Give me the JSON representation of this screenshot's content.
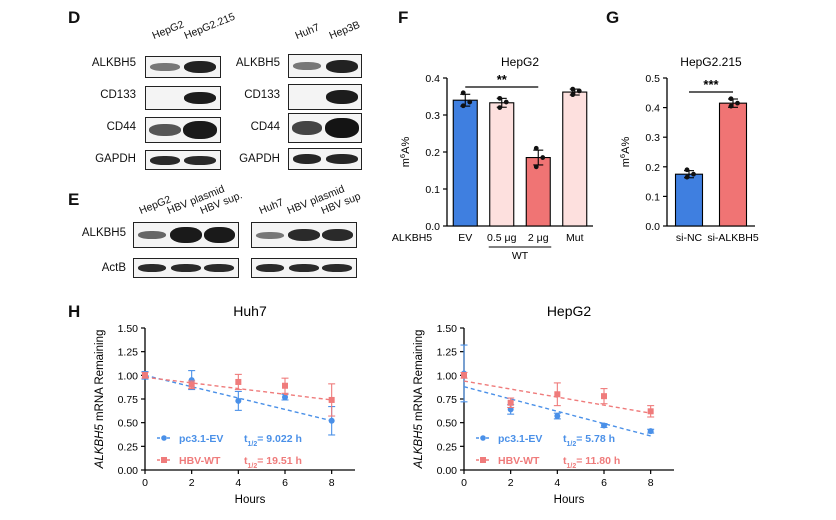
{
  "panels": {
    "D": "D",
    "E": "E",
    "F": "F",
    "G": "G",
    "H": "H"
  },
  "blot_D": {
    "left": {
      "lanes": [
        "HepG2",
        "HepG2.215"
      ],
      "rows": [
        "ALKBH5",
        "CD133",
        "CD44",
        "GAPDH"
      ]
    },
    "right": {
      "lanes": [
        "Huh7",
        "Hep3B"
      ],
      "rows": [
        "ALKBH5",
        "CD133",
        "CD44",
        "GAPDH"
      ]
    }
  },
  "blot_E": {
    "left": {
      "lanes": [
        "HepG2",
        "HBV plasmid",
        "HBV sup."
      ]
    },
    "right": {
      "lanes": [
        "Huh7",
        "HBV plasmid",
        "HBV sup"
      ]
    },
    "rows": [
      "ALKBH5",
      "ActB"
    ]
  },
  "chart_data": [
    {
      "id": "F",
      "type": "bar",
      "title": "HepG2",
      "ylabel": "m6A%",
      "ylim": [
        0,
        0.4
      ],
      "yticks": [
        "0.0",
        "0.1",
        "0.2",
        "0.3",
        "0.4"
      ],
      "row_label": "ALKBH5",
      "categories": [
        "EV",
        "0.5 μg",
        "2 μg",
        "Mut"
      ],
      "group_label": "WT",
      "values": [
        0.34,
        0.333,
        0.185,
        0.362
      ],
      "errors": [
        0.016,
        0.012,
        0.02,
        0.008
      ],
      "points": [
        [
          0.36,
          0.335,
          0.325
        ],
        [
          0.345,
          0.335,
          0.32
        ],
        [
          0.21,
          0.185,
          0.16
        ],
        [
          0.37,
          0.365,
          0.355
        ]
      ],
      "colors": [
        "#3f7fe0",
        "#fde0de",
        "#f07474",
        "#fde0de"
      ],
      "significance": "**"
    },
    {
      "id": "G",
      "type": "bar",
      "title": "HepG2.215",
      "ylabel": "m6A%",
      "ylim": [
        0,
        0.5
      ],
      "yticks": [
        "0.0",
        "0.1",
        "0.2",
        "0.3",
        "0.4",
        "0.5"
      ],
      "categories": [
        "si-NC",
        "si-ALKBH5"
      ],
      "values": [
        0.175,
        0.415
      ],
      "errors": [
        0.012,
        0.014
      ],
      "points": [
        [
          0.19,
          0.175,
          0.165
        ],
        [
          0.43,
          0.415,
          0.405
        ]
      ],
      "colors": [
        "#3f7fe0",
        "#f07474"
      ],
      "significance": "***"
    },
    {
      "id": "H1",
      "type": "line",
      "title": "Huh7",
      "xlabel": "Hours",
      "ylabel_italic": "ALKBH5",
      "ylabel_rest": " mRNA Remaining",
      "xlim": [
        0,
        9
      ],
      "ylim": [
        0,
        1.5
      ],
      "xticks": [
        "0",
        "2",
        "4",
        "6",
        "8"
      ],
      "yticks": [
        "0.00",
        "0.25",
        "0.50",
        "0.75",
        "1.00",
        "1.25",
        "1.50"
      ],
      "series": [
        {
          "name": "pc3.1-EV",
          "t_half": "9.022 h",
          "color": "#4a90e8",
          "marker": "circle",
          "x": [
            0,
            2,
            4,
            6,
            8
          ],
          "y": [
            1.0,
            0.95,
            0.73,
            0.77,
            0.52
          ],
          "err": [
            0.04,
            0.1,
            0.1,
            0.03,
            0.15
          ],
          "fit": [
            1.0,
            0.52
          ]
        },
        {
          "name": "HBV-WT",
          "t_half": "19.51 h",
          "color": "#ef7b7b",
          "marker": "square",
          "x": [
            0,
            2,
            4,
            6,
            8
          ],
          "y": [
            1.0,
            0.9,
            0.93,
            0.89,
            0.74
          ],
          "err": [
            0.03,
            0.04,
            0.08,
            0.08,
            0.17
          ],
          "fit": [
            0.98,
            0.74
          ]
        }
      ]
    },
    {
      "id": "H2",
      "type": "line",
      "title": "HepG2",
      "xlabel": "Hours",
      "ylabel_italic": "ALKBH5",
      "ylabel_rest": " mRNA Remaining",
      "xlim": [
        0,
        9
      ],
      "ylim": [
        0,
        1.5
      ],
      "xticks": [
        "0",
        "2",
        "4",
        "6",
        "8"
      ],
      "yticks": [
        "0.00",
        "0.25",
        "0.50",
        "0.75",
        "1.00",
        "1.25",
        "1.50"
      ],
      "series": [
        {
          "name": "pc3.1-EV",
          "t_half": "5.78 h",
          "color": "#4a90e8",
          "marker": "circle",
          "x": [
            0,
            2,
            4,
            6,
            8
          ],
          "y": [
            1.02,
            0.64,
            0.57,
            0.47,
            0.41
          ],
          "err": [
            0.3,
            0.05,
            0.03,
            0.02,
            0.02
          ],
          "fit": [
            0.88,
            0.36
          ]
        },
        {
          "name": "HBV-WT",
          "t_half": "11.80 h",
          "color": "#ef7b7b",
          "marker": "square",
          "x": [
            0,
            2,
            4,
            6,
            8
          ],
          "y": [
            1.0,
            0.71,
            0.8,
            0.78,
            0.62
          ],
          "err": [
            0.03,
            0.05,
            0.12,
            0.08,
            0.06
          ],
          "fit": [
            0.94,
            0.6
          ]
        }
      ]
    }
  ]
}
